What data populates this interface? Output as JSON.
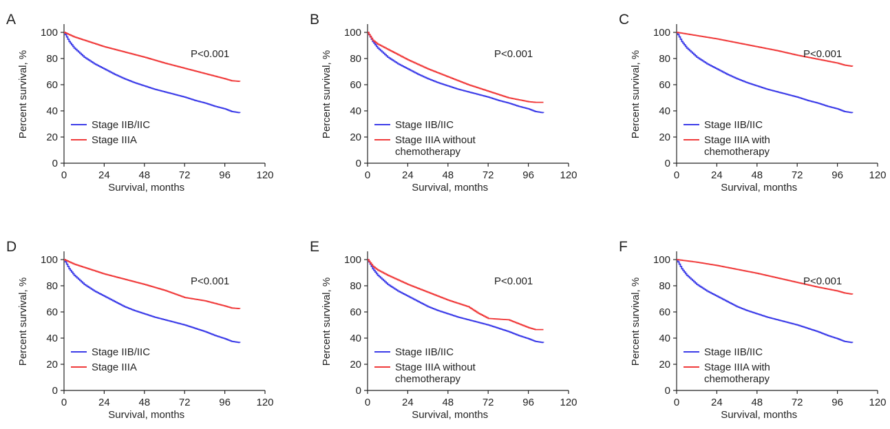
{
  "colors": {
    "stage_iib_iic": "#3a3ae8",
    "stage_iiia": "#f03a3a",
    "axis": "#222222"
  },
  "chart_data": [
    {
      "panel": "A",
      "type": "line",
      "pvalue": "P<0.001",
      "xlabel": "Survival, months",
      "ylabel": "Percent survival, %",
      "xlim": [
        0,
        120
      ],
      "ylim": [
        0,
        100
      ],
      "xticks": [
        0,
        24,
        48,
        72,
        96,
        120
      ],
      "yticks": [
        0,
        20,
        40,
        60,
        80,
        100
      ],
      "legend_position": "bottom-left",
      "grid": false,
      "series": [
        {
          "name": "Stage IIB/IIC",
          "color": "#3a3ae8",
          "x": [
            0,
            3,
            6,
            12,
            18,
            24,
            30,
            36,
            42,
            48,
            54,
            60,
            66,
            72,
            78,
            84,
            90,
            96,
            100,
            105
          ],
          "y": [
            100,
            93,
            88,
            81,
            76,
            72,
            68,
            64.5,
            61.5,
            59,
            56.5,
            54.5,
            52.5,
            50.5,
            48,
            46,
            43.5,
            41.5,
            39.5,
            38.5
          ]
        },
        {
          "name": "Stage IIIA",
          "color": "#f03a3a",
          "x": [
            0,
            6,
            12,
            24,
            36,
            48,
            60,
            72,
            84,
            96,
            100,
            105
          ],
          "y": [
            100,
            96.5,
            94,
            89,
            85,
            81,
            76.5,
            72.5,
            68.5,
            64.5,
            63,
            62.5
          ]
        }
      ]
    },
    {
      "panel": "B",
      "type": "line",
      "pvalue": "P<0.001",
      "xlabel": "Survival, months",
      "ylabel": "Percent survival, %",
      "xlim": [
        0,
        120
      ],
      "ylim": [
        0,
        100
      ],
      "xticks": [
        0,
        24,
        48,
        72,
        96,
        120
      ],
      "yticks": [
        0,
        20,
        40,
        60,
        80,
        100
      ],
      "legend_position": "bottom-left",
      "grid": false,
      "series": [
        {
          "name": "Stage IIB/IIC",
          "color": "#3a3ae8",
          "x": [
            0,
            3,
            6,
            12,
            18,
            24,
            30,
            36,
            42,
            48,
            54,
            60,
            66,
            72,
            78,
            84,
            90,
            96,
            100,
            105
          ],
          "y": [
            100,
            93,
            88,
            81,
            76,
            72,
            68,
            64.5,
            61.5,
            59,
            56.5,
            54.5,
            52.5,
            50.5,
            48,
            46,
            43.5,
            41.5,
            39.5,
            38.5
          ]
        },
        {
          "name": "Stage IIIA without chemotherapy",
          "color": "#f03a3a",
          "x": [
            0,
            3,
            6,
            12,
            24,
            36,
            48,
            60,
            72,
            84,
            96,
            100,
            105
          ],
          "y": [
            100,
            94,
            91,
            87,
            79,
            72,
            66,
            60,
            55,
            50,
            47,
            46.5,
            46.5
          ]
        }
      ]
    },
    {
      "panel": "C",
      "type": "line",
      "pvalue": "P<0.001",
      "xlabel": "Survival, months",
      "ylabel": "Percent survival, %",
      "xlim": [
        0,
        120
      ],
      "ylim": [
        0,
        100
      ],
      "xticks": [
        0,
        24,
        48,
        72,
        96,
        120
      ],
      "yticks": [
        0,
        20,
        40,
        60,
        80,
        100
      ],
      "legend_position": "bottom-left",
      "grid": false,
      "series": [
        {
          "name": "Stage IIB/IIC",
          "color": "#3a3ae8",
          "x": [
            0,
            3,
            6,
            12,
            18,
            24,
            30,
            36,
            42,
            48,
            54,
            60,
            66,
            72,
            78,
            84,
            90,
            96,
            100,
            105
          ],
          "y": [
            100,
            93,
            88,
            81,
            76,
            72,
            68,
            64.5,
            61.5,
            59,
            56.5,
            54.5,
            52.5,
            50.5,
            48,
            46,
            43.5,
            41.5,
            39.5,
            38.5
          ]
        },
        {
          "name": "Stage IIIA with chemotherapy",
          "color": "#f03a3a",
          "x": [
            0,
            12,
            24,
            36,
            48,
            60,
            72,
            84,
            96,
            100,
            105
          ],
          "y": [
            100,
            97.5,
            95,
            92,
            89,
            86,
            82.5,
            79.5,
            76.5,
            75,
            74
          ]
        }
      ]
    },
    {
      "panel": "D",
      "type": "line",
      "pvalue": "P<0.001",
      "xlabel": "Survival, months",
      "ylabel": "Percent survival, %",
      "xlim": [
        0,
        120
      ],
      "ylim": [
        0,
        100
      ],
      "xticks": [
        0,
        24,
        48,
        72,
        96,
        120
      ],
      "yticks": [
        0,
        20,
        40,
        60,
        80,
        100
      ],
      "legend_position": "bottom-left",
      "grid": false,
      "series": [
        {
          "name": "Stage IIB/IIC",
          "color": "#3a3ae8",
          "x": [
            0,
            3,
            6,
            12,
            18,
            24,
            30,
            36,
            42,
            48,
            54,
            60,
            66,
            72,
            78,
            84,
            90,
            96,
            100,
            105
          ],
          "y": [
            100,
            93,
            88,
            81,
            76,
            72,
            68,
            64,
            61,
            58.5,
            56,
            54,
            52,
            50,
            47.5,
            45,
            42,
            39.5,
            37.5,
            36.5
          ]
        },
        {
          "name": "Stage IIIA",
          "color": "#f03a3a",
          "x": [
            0,
            6,
            12,
            24,
            36,
            48,
            60,
            72,
            84,
            96,
            100,
            105
          ],
          "y": [
            100,
            96.5,
            94,
            89,
            85,
            81,
            76.5,
            71,
            68.5,
            64.5,
            63,
            62.5
          ]
        }
      ]
    },
    {
      "panel": "E",
      "type": "line",
      "pvalue": "P<0.001",
      "xlabel": "Survival, months",
      "ylabel": "Percent survival, %",
      "xlim": [
        0,
        120
      ],
      "ylim": [
        0,
        100
      ],
      "xticks": [
        0,
        24,
        48,
        72,
        96,
        120
      ],
      "yticks": [
        0,
        20,
        40,
        60,
        80,
        100
      ],
      "legend_position": "bottom-left",
      "grid": false,
      "series": [
        {
          "name": "Stage IIB/IIC",
          "color": "#3a3ae8",
          "x": [
            0,
            3,
            6,
            12,
            18,
            24,
            30,
            36,
            42,
            48,
            54,
            60,
            66,
            72,
            78,
            84,
            90,
            96,
            100,
            105
          ],
          "y": [
            100,
            93,
            88,
            81,
            76,
            72,
            68,
            64,
            61,
            58.5,
            56,
            54,
            52,
            50,
            47.5,
            45,
            42,
            39.5,
            37.5,
            36.5
          ]
        },
        {
          "name": "Stage IIIA without chemotherapy",
          "color": "#f03a3a",
          "x": [
            0,
            3,
            6,
            12,
            24,
            36,
            48,
            60,
            66,
            72,
            84,
            90,
            96,
            100,
            105
          ],
          "y": [
            100,
            95,
            92,
            88,
            81,
            75,
            69,
            64,
            59,
            55,
            54,
            51,
            48,
            46.5,
            46.5
          ]
        }
      ]
    },
    {
      "panel": "F",
      "type": "line",
      "pvalue": "P<0.001",
      "xlabel": "Survival, months",
      "ylabel": "Percent survival, %",
      "xlim": [
        0,
        120
      ],
      "ylim": [
        0,
        100
      ],
      "xticks": [
        0,
        24,
        48,
        72,
        96,
        120
      ],
      "yticks": [
        0,
        20,
        40,
        60,
        80,
        100
      ],
      "legend_position": "bottom-left",
      "grid": false,
      "series": [
        {
          "name": "Stage IIB/IIC",
          "color": "#3a3ae8",
          "x": [
            0,
            3,
            6,
            12,
            18,
            24,
            30,
            36,
            42,
            48,
            54,
            60,
            66,
            72,
            78,
            84,
            90,
            96,
            100,
            105
          ],
          "y": [
            100,
            93,
            88,
            81,
            76,
            72,
            68,
            64,
            61,
            58.5,
            56,
            54,
            52,
            50,
            47.5,
            45,
            42,
            39.5,
            37.5,
            36.5
          ]
        },
        {
          "name": "Stage IIIA with chemotherapy",
          "color": "#f03a3a",
          "x": [
            0,
            12,
            24,
            36,
            48,
            60,
            72,
            84,
            96,
            100,
            105
          ],
          "y": [
            100,
            98,
            95.5,
            92.5,
            89.5,
            86,
            82.5,
            79,
            76,
            74.5,
            73.5
          ]
        }
      ]
    }
  ]
}
